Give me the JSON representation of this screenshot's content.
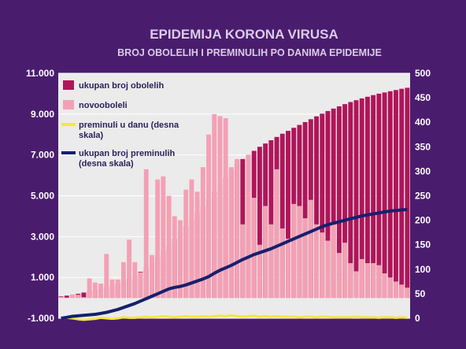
{
  "chart_data": {
    "type": "bar",
    "title": "EPIDEMIJA KORONA VIRUSA",
    "subtitle": "BROJ OBOLELIH I PREMINULIH PO DANIMA EPIDEMIJE",
    "y_left": {
      "min": -1000,
      "max": 11000,
      "ticks": [
        "-1.000",
        "1.000",
        "3.000",
        "5.000",
        "7.000",
        "9.000",
        "11.000"
      ],
      "tick_values": [
        -1000,
        1000,
        3000,
        5000,
        7000,
        9000,
        11000
      ]
    },
    "y_right": {
      "min": 0,
      "max": 500,
      "ticks": [
        "0",
        "50",
        "100",
        "150",
        "200",
        "250",
        "300",
        "350",
        "400",
        "450",
        "500"
      ],
      "tick_values": [
        0,
        50,
        100,
        150,
        200,
        250,
        300,
        350,
        400,
        450,
        500
      ]
    },
    "grid": true,
    "legend_position": "top-left",
    "colors": {
      "background": "#4a1c6e",
      "plot_area": "#ebebeb",
      "grid": "#ffffff",
      "total_cases": "#b0155a",
      "new_cases": "#f4a0b4",
      "daily_deaths": "#f5e642",
      "total_deaths": "#16206e"
    },
    "series": [
      {
        "name": "ukupan broj obolelih",
        "axis": "left",
        "kind": "bar",
        "values": [
          70,
          110,
          160,
          200,
          260,
          320,
          390,
          440,
          520,
          600,
          700,
          820,
          950,
          1100,
          1280,
          1500,
          1740,
          2000,
          2280,
          2560,
          2880,
          3200,
          3520,
          3850,
          4180,
          4500,
          4850,
          5200,
          5550,
          5900,
          6250,
          6550,
          6800,
          7000,
          7200,
          7400,
          7560,
          7720,
          7880,
          8040,
          8180,
          8330,
          8470,
          8610,
          8750,
          8890,
          9020,
          9150,
          9270,
          9380,
          9490,
          9590,
          9680,
          9770,
          9850,
          9930,
          10000,
          10060,
          10120,
          10180,
          10240,
          10290
        ]
      },
      {
        "name": "novooboleli",
        "axis": "left",
        "kind": "bar",
        "values": [
          40,
          10,
          160,
          150,
          30,
          950,
          750,
          700,
          2150,
          900,
          900,
          1750,
          2850,
          1750,
          1250,
          6300,
          2100,
          5800,
          5950,
          5000,
          4000,
          3800,
          5300,
          5800,
          5200,
          6400,
          8000,
          9000,
          8900,
          8800,
          6400,
          6800,
          3600,
          7000,
          4900,
          2600,
          4500,
          3600,
          6300,
          3400,
          2900,
          4600,
          4500,
          3900,
          4800,
          3600,
          3200,
          2800,
          3600,
          2200,
          2700,
          1700,
          1300,
          1900,
          1700,
          1700,
          1600,
          1200,
          1000,
          800,
          650,
          500
        ]
      },
      {
        "name": "preminuli u danu (desna skala)",
        "axis": "right",
        "kind": "line",
        "values": [
          0,
          1,
          0,
          -2,
          -3,
          -2,
          -1,
          1,
          0,
          -1,
          0,
          2,
          1,
          1,
          2,
          3,
          2,
          3,
          4,
          3,
          2,
          3,
          4,
          3,
          3,
          4,
          3,
          4,
          5,
          4,
          6,
          4,
          3,
          4,
          5,
          3,
          4,
          3,
          4,
          3,
          3,
          3,
          2,
          3,
          3,
          2,
          3,
          3,
          2,
          2,
          2,
          2,
          3,
          2,
          2,
          2,
          1,
          2,
          2,
          1,
          2,
          1
        ]
      },
      {
        "name": "ukupan broj preminulih\n(desna skala)",
        "axis": "right",
        "kind": "line",
        "values": [
          0,
          2,
          4,
          5,
          6,
          7,
          8,
          10,
          12,
          15,
          18,
          22,
          26,
          30,
          35,
          40,
          45,
          50,
          55,
          60,
          63,
          65,
          68,
          72,
          76,
          80,
          85,
          92,
          98,
          103,
          108,
          114,
          120,
          125,
          130,
          134,
          138,
          142,
          147,
          152,
          157,
          162,
          167,
          172,
          177,
          182,
          187,
          191,
          194,
          197,
          200,
          203,
          206,
          209,
          211,
          213,
          215,
          217,
          219,
          220,
          221,
          222
        ]
      }
    ]
  }
}
